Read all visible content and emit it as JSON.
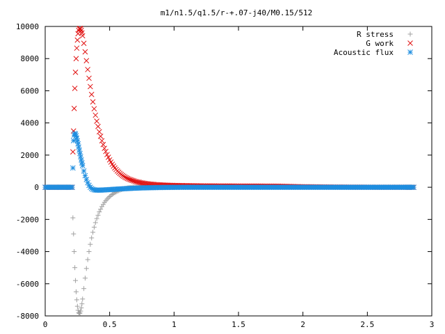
{
  "chart_data": {
    "type": "scatter",
    "title": "m1/n1.5/q1.5/r-+.07-j40/M0.15/512",
    "xlabel": "",
    "ylabel": "",
    "xlim": [
      0,
      3
    ],
    "ylim": [
      -8000,
      10000
    ],
    "x_ticks": [
      "0",
      "0.5",
      "1",
      "1.5",
      "2",
      "2.5",
      "3"
    ],
    "y_ticks": [
      "-8000",
      "-6000",
      "-4000",
      "-2000",
      "0",
      "2000",
      "4000",
      "6000",
      "8000",
      "10000"
    ],
    "grid": false,
    "legend_position": "top-right",
    "series": [
      {
        "name": "R stress",
        "marker": "plus",
        "color": "#a0a0a0",
        "points": [
          [
            0.0,
            0
          ],
          [
            0.05,
            0
          ],
          [
            0.1,
            0
          ],
          [
            0.15,
            0
          ],
          [
            0.2,
            0
          ],
          [
            0.21,
            0
          ],
          [
            0.215,
            -1900
          ],
          [
            0.22,
            -2900
          ],
          [
            0.225,
            -4000
          ],
          [
            0.23,
            -5000
          ],
          [
            0.235,
            -5800
          ],
          [
            0.24,
            -6500
          ],
          [
            0.245,
            -7000
          ],
          [
            0.25,
            -7400
          ],
          [
            0.255,
            -7650
          ],
          [
            0.26,
            -7800
          ],
          [
            0.265,
            -7850
          ],
          [
            0.27,
            -7820
          ],
          [
            0.275,
            -7700
          ],
          [
            0.28,
            -7500
          ],
          [
            0.285,
            -7250
          ],
          [
            0.29,
            -6950
          ],
          [
            0.3,
            -6300
          ],
          [
            0.31,
            -5650
          ],
          [
            0.32,
            -5050
          ],
          [
            0.33,
            -4500
          ],
          [
            0.34,
            -4000
          ],
          [
            0.35,
            -3550
          ],
          [
            0.36,
            -3150
          ],
          [
            0.37,
            -2800
          ],
          [
            0.38,
            -2480
          ],
          [
            0.39,
            -2200
          ],
          [
            0.4,
            -1950
          ],
          [
            0.42,
            -1530
          ],
          [
            0.44,
            -1200
          ],
          [
            0.46,
            -940
          ],
          [
            0.48,
            -740
          ],
          [
            0.5,
            -580
          ],
          [
            0.52,
            -450
          ],
          [
            0.54,
            -340
          ],
          [
            0.56,
            -250
          ],
          [
            0.58,
            -180
          ],
          [
            0.6,
            -120
          ],
          [
            0.62,
            -70
          ],
          [
            0.65,
            -20
          ],
          [
            0.68,
            10
          ],
          [
            0.7,
            20
          ],
          [
            0.75,
            25
          ],
          [
            0.8,
            20
          ],
          [
            0.9,
            15
          ],
          [
            1.0,
            10
          ],
          [
            1.2,
            6
          ],
          [
            1.4,
            4
          ],
          [
            1.6,
            3
          ],
          [
            1.8,
            2
          ],
          [
            2.0,
            1
          ],
          [
            2.2,
            1
          ],
          [
            2.4,
            0
          ],
          [
            2.6,
            0
          ],
          [
            2.8,
            0
          ],
          [
            2.86,
            0
          ]
        ]
      },
      {
        "name": "G work",
        "marker": "cross",
        "color": "#e01010",
        "points": [
          [
            0.0,
            0
          ],
          [
            0.05,
            0
          ],
          [
            0.1,
            0
          ],
          [
            0.15,
            0
          ],
          [
            0.2,
            0
          ],
          [
            0.21,
            0
          ],
          [
            0.215,
            2200
          ],
          [
            0.22,
            3500
          ],
          [
            0.225,
            4900
          ],
          [
            0.23,
            6150
          ],
          [
            0.235,
            7150
          ],
          [
            0.24,
            8000
          ],
          [
            0.245,
            8650
          ],
          [
            0.25,
            9150
          ],
          [
            0.255,
            9550
          ],
          [
            0.26,
            9750
          ],
          [
            0.265,
            9850
          ],
          [
            0.27,
            9880
          ],
          [
            0.275,
            9840
          ],
          [
            0.28,
            9750
          ],
          [
            0.285,
            9600
          ],
          [
            0.29,
            9420
          ],
          [
            0.3,
            8950
          ],
          [
            0.31,
            8420
          ],
          [
            0.32,
            7870
          ],
          [
            0.33,
            7320
          ],
          [
            0.34,
            6780
          ],
          [
            0.35,
            6260
          ],
          [
            0.36,
            5770
          ],
          [
            0.37,
            5310
          ],
          [
            0.38,
            4880
          ],
          [
            0.39,
            4480
          ],
          [
            0.4,
            4110
          ],
          [
            0.42,
            3450
          ],
          [
            0.44,
            2890
          ],
          [
            0.46,
            2420
          ],
          [
            0.48,
            2030
          ],
          [
            0.5,
            1700
          ],
          [
            0.52,
            1430
          ],
          [
            0.54,
            1200
          ],
          [
            0.56,
            1010
          ],
          [
            0.58,
            860
          ],
          [
            0.6,
            730
          ],
          [
            0.62,
            620
          ],
          [
            0.65,
            500
          ],
          [
            0.7,
            360
          ],
          [
            0.75,
            270
          ],
          [
            0.8,
            210
          ],
          [
            0.85,
            170
          ],
          [
            0.9,
            140
          ],
          [
            1.0,
            110
          ],
          [
            1.1,
            95
          ],
          [
            1.2,
            85
          ],
          [
            1.4,
            75
          ],
          [
            1.6,
            70
          ],
          [
            1.8,
            65
          ],
          [
            2.0,
            30
          ],
          [
            2.2,
            15
          ],
          [
            2.4,
            5
          ],
          [
            2.6,
            0
          ],
          [
            2.8,
            0
          ],
          [
            2.86,
            0
          ]
        ]
      },
      {
        "name": "Acoustic flux",
        "marker": "star",
        "color": "#1e8ee0",
        "points": [
          [
            0.0,
            0
          ],
          [
            0.05,
            0
          ],
          [
            0.1,
            0
          ],
          [
            0.15,
            0
          ],
          [
            0.2,
            0
          ],
          [
            0.21,
            0
          ],
          [
            0.215,
            1200
          ],
          [
            0.22,
            2900
          ],
          [
            0.225,
            3250
          ],
          [
            0.23,
            3350
          ],
          [
            0.235,
            3300
          ],
          [
            0.24,
            3200
          ],
          [
            0.245,
            3050
          ],
          [
            0.25,
            2880
          ],
          [
            0.255,
            2700
          ],
          [
            0.26,
            2500
          ],
          [
            0.265,
            2300
          ],
          [
            0.27,
            2100
          ],
          [
            0.275,
            1900
          ],
          [
            0.28,
            1700
          ],
          [
            0.285,
            1520
          ],
          [
            0.29,
            1340
          ],
          [
            0.3,
            1010
          ],
          [
            0.31,
            720
          ],
          [
            0.32,
            480
          ],
          [
            0.33,
            280
          ],
          [
            0.34,
            120
          ],
          [
            0.35,
            0
          ],
          [
            0.36,
            -80
          ],
          [
            0.37,
            -130
          ],
          [
            0.38,
            -160
          ],
          [
            0.39,
            -175
          ],
          [
            0.4,
            -180
          ],
          [
            0.42,
            -180
          ],
          [
            0.44,
            -175
          ],
          [
            0.46,
            -165
          ],
          [
            0.48,
            -155
          ],
          [
            0.5,
            -145
          ],
          [
            0.52,
            -135
          ],
          [
            0.54,
            -125
          ],
          [
            0.56,
            -115
          ],
          [
            0.58,
            -105
          ],
          [
            0.6,
            -95
          ],
          [
            0.65,
            -75
          ],
          [
            0.7,
            -55
          ],
          [
            0.75,
            -40
          ],
          [
            0.8,
            -30
          ],
          [
            0.9,
            -15
          ],
          [
            1.0,
            -5
          ],
          [
            1.2,
            0
          ],
          [
            1.4,
            0
          ],
          [
            1.6,
            0
          ],
          [
            1.8,
            0
          ],
          [
            2.0,
            0
          ],
          [
            2.2,
            0
          ],
          [
            2.4,
            0
          ],
          [
            2.6,
            0
          ],
          [
            2.8,
            0
          ],
          [
            2.86,
            0
          ]
        ]
      }
    ]
  }
}
